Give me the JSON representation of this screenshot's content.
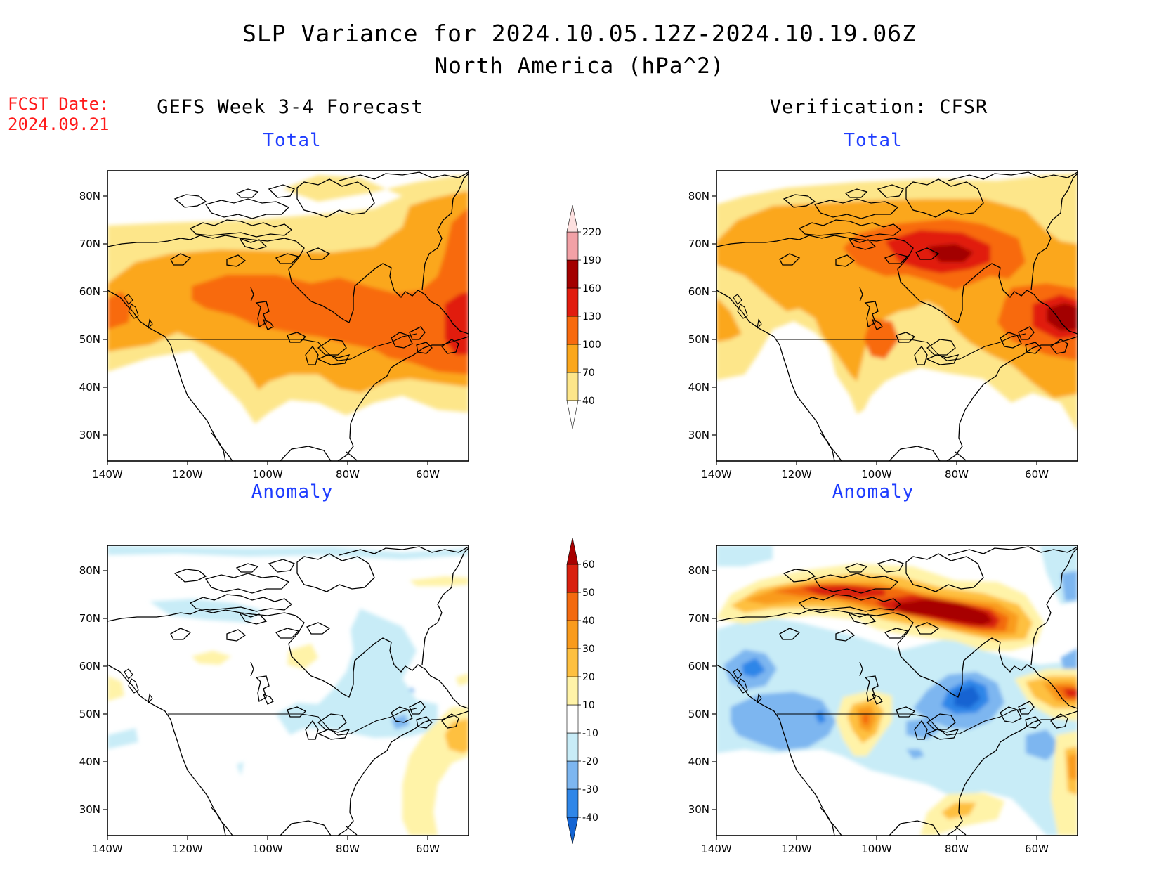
{
  "title": {
    "line1": "SLP Variance for 2024.10.05.12Z-2024.10.19.06Z",
    "line2": "North America (hPa^2)"
  },
  "fcst_date": {
    "label": "FCST Date:",
    "value": "2024.09.21"
  },
  "columns": {
    "left": "GEFS Week 3-4 Forecast",
    "right": "Verification: CFSR"
  },
  "panels": {
    "forecast_total": {
      "subtitle": "Total"
    },
    "forecast_anomaly": {
      "subtitle": "Anomaly"
    },
    "verif_total": {
      "subtitle": "Total"
    },
    "verif_anomaly": {
      "subtitle": "Anomaly"
    }
  },
  "axes": {
    "lat_labels": [
      "80N",
      "70N",
      "60N",
      "50N",
      "40N",
      "30N"
    ],
    "lon_labels": [
      "140W",
      "120W",
      "100W",
      "80W",
      "60W"
    ]
  },
  "colorbars": {
    "total": {
      "labels": [
        "40",
        "70",
        "100",
        "130",
        "160",
        "190",
        "220"
      ],
      "colors": [
        "#fde68a",
        "#fba71c",
        "#f86a0e",
        "#e11c0f",
        "#a30000",
        "#f2a1a6",
        "#fde0df"
      ]
    },
    "anomaly": {
      "labels": [
        "-40",
        "-30",
        "-20",
        "-10",
        "10",
        "20",
        "30",
        "40",
        "50",
        "60"
      ],
      "colors": [
        "#1464d2",
        "#2f86e8",
        "#7db6f0",
        "#c8ecf7",
        "#ffffff",
        "#fff3a8",
        "#fec040",
        "#f99b1d",
        "#f36a10",
        "#d9200f",
        "#a70000"
      ]
    }
  }
}
